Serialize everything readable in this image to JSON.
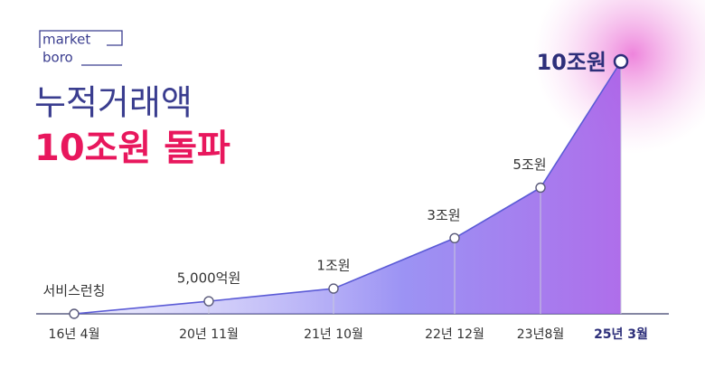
{
  "brand": {
    "line1": "market",
    "line2": "boro"
  },
  "chart_data": {
    "type": "line",
    "title": "누적거래액",
    "subtitle": "10조원 돌파",
    "categories": [
      "16년 4월",
      "20년 11월",
      "21년 10월",
      "22년 12월",
      "23년8월",
      "25년 3월"
    ],
    "values": [
      0,
      0.5,
      1,
      3,
      5,
      10
    ],
    "value_labels": [
      "서비스런칭",
      "5,000억원",
      "1조원",
      "3조원",
      "5조원",
      "10조원"
    ],
    "ylim": [
      0,
      10
    ],
    "color": "#5b5bd6"
  }
}
